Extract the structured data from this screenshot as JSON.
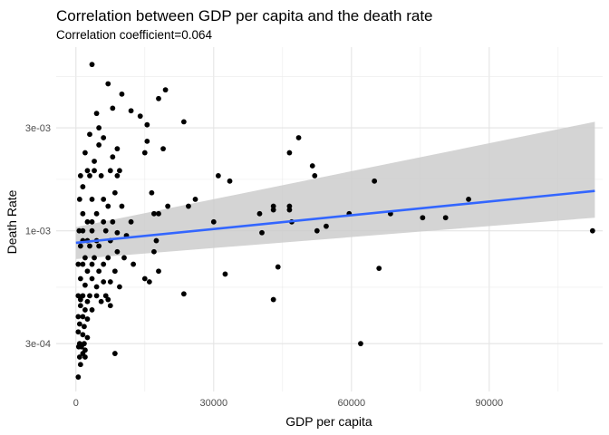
{
  "chart_data": {
    "type": "scatter",
    "title": "Correlation between GDP per capita and the death rate",
    "subtitle": "Correlation coefficient=0.064",
    "xlabel": "GDP per capita",
    "ylabel": "Death Rate",
    "y_scale": "log10",
    "x_ticks": [
      0,
      30000,
      60000,
      90000
    ],
    "x_tick_labels": [
      "0",
      "30000",
      "60000",
      "90000"
    ],
    "y_ticks": [
      0.0003,
      0.001,
      0.003
    ],
    "y_tick_labels": [
      "3e-04",
      "1e-03",
      "3e-03"
    ],
    "xlim": [
      -4300,
      114700
    ],
    "ylim": [
      0.00018,
      0.0071
    ],
    "grid": true,
    "regression_line": {
      "x_start": 0,
      "y_start": 0.00088,
      "x_end": 113000,
      "y_end": 0.00153,
      "ci_start": [
        0.00074,
        0.00104
      ],
      "ci_end": [
        0.00115,
        0.0032
      ],
      "color": "#3366ff",
      "band_color": "#cccccc"
    },
    "point_color": "#000000",
    "points": [
      {
        "x": 3500,
        "y": 0.0059
      },
      {
        "x": 7000,
        "y": 0.0048
      },
      {
        "x": 10000,
        "y": 0.0043
      },
      {
        "x": 19500,
        "y": 0.0045
      },
      {
        "x": 18000,
        "y": 0.0041
      },
      {
        "x": 8000,
        "y": 0.0037
      },
      {
        "x": 12000,
        "y": 0.0036
      },
      {
        "x": 14000,
        "y": 0.0034
      },
      {
        "x": 4500,
        "y": 0.0035
      },
      {
        "x": 23500,
        "y": 0.0032
      },
      {
        "x": 15500,
        "y": 0.0031
      },
      {
        "x": 5000,
        "y": 0.003
      },
      {
        "x": 3000,
        "y": 0.0028
      },
      {
        "x": 6000,
        "y": 0.0027
      },
      {
        "x": 15500,
        "y": 0.0026
      },
      {
        "x": 5000,
        "y": 0.0025
      },
      {
        "x": 9000,
        "y": 0.0024
      },
      {
        "x": 19000,
        "y": 0.0024
      },
      {
        "x": 2000,
        "y": 0.0023
      },
      {
        "x": 8000,
        "y": 0.0022
      },
      {
        "x": 15000,
        "y": 0.0023
      },
      {
        "x": 4000,
        "y": 0.0021
      },
      {
        "x": 2500,
        "y": 0.0019
      },
      {
        "x": 4000,
        "y": 0.0019
      },
      {
        "x": 7500,
        "y": 0.0019
      },
      {
        "x": 9500,
        "y": 0.0019
      },
      {
        "x": 1000,
        "y": 0.0018
      },
      {
        "x": 3000,
        "y": 0.0018
      },
      {
        "x": 5500,
        "y": 0.0018
      },
      {
        "x": 9000,
        "y": 0.0018
      },
      {
        "x": 1500,
        "y": 0.0016
      },
      {
        "x": 8500,
        "y": 0.0015
      },
      {
        "x": 3500,
        "y": 0.0014
      },
      {
        "x": 800,
        "y": 0.0014
      },
      {
        "x": 6000,
        "y": 0.0014
      },
      {
        "x": 16500,
        "y": 0.0015
      },
      {
        "x": 7000,
        "y": 0.0013
      },
      {
        "x": 10000,
        "y": 0.0013
      },
      {
        "x": 1500,
        "y": 0.0012
      },
      {
        "x": 4500,
        "y": 0.0012
      },
      {
        "x": 20000,
        "y": 0.0013
      },
      {
        "x": 18000,
        "y": 0.0012
      },
      {
        "x": 17000,
        "y": 0.0012
      },
      {
        "x": 2500,
        "y": 0.0011
      },
      {
        "x": 3500,
        "y": 0.0011
      },
      {
        "x": 6000,
        "y": 0.0011
      },
      {
        "x": 8000,
        "y": 0.0011
      },
      {
        "x": 12000,
        "y": 0.0011
      },
      {
        "x": 700,
        "y": 0.001
      },
      {
        "x": 1500,
        "y": 0.001
      },
      {
        "x": 3500,
        "y": 0.001
      },
      {
        "x": 6500,
        "y": 0.001
      },
      {
        "x": 9000,
        "y": 0.00098
      },
      {
        "x": 11000,
        "y": 0.00095
      },
      {
        "x": 1500,
        "y": 0.0009
      },
      {
        "x": 2500,
        "y": 0.0009
      },
      {
        "x": 4500,
        "y": 0.0009
      },
      {
        "x": 7500,
        "y": 0.0009
      },
      {
        "x": 17500,
        "y": 0.0009
      },
      {
        "x": 1000,
        "y": 0.00085
      },
      {
        "x": 3000,
        "y": 0.00085
      },
      {
        "x": 5000,
        "y": 0.00085
      },
      {
        "x": 9000,
        "y": 0.0008
      },
      {
        "x": 17000,
        "y": 0.0008
      },
      {
        "x": 2000,
        "y": 0.00075
      },
      {
        "x": 4000,
        "y": 0.00075
      },
      {
        "x": 7000,
        "y": 0.00075
      },
      {
        "x": 10500,
        "y": 0.00075
      },
      {
        "x": 500,
        "y": 0.0007
      },
      {
        "x": 1500,
        "y": 0.0007
      },
      {
        "x": 3500,
        "y": 0.0007
      },
      {
        "x": 6000,
        "y": 0.0007
      },
      {
        "x": 12500,
        "y": 0.0007
      },
      {
        "x": 18000,
        "y": 0.00065
      },
      {
        "x": 2500,
        "y": 0.00065
      },
      {
        "x": 5000,
        "y": 0.00065
      },
      {
        "x": 8500,
        "y": 0.00065
      },
      {
        "x": 1000,
        "y": 0.0006
      },
      {
        "x": 3500,
        "y": 0.0006
      },
      {
        "x": 15000,
        "y": 0.0006
      },
      {
        "x": 16000,
        "y": 0.00058
      },
      {
        "x": 6000,
        "y": 0.00058
      },
      {
        "x": 7500,
        "y": 0.00058
      },
      {
        "x": 2000,
        "y": 0.00056
      },
      {
        "x": 4500,
        "y": 0.00055
      },
      {
        "x": 9500,
        "y": 0.00055
      },
      {
        "x": 500,
        "y": 0.0005
      },
      {
        "x": 1500,
        "y": 0.0005
      },
      {
        "x": 3000,
        "y": 0.0005
      },
      {
        "x": 4500,
        "y": 0.0005
      },
      {
        "x": 6500,
        "y": 0.0005
      },
      {
        "x": 7000,
        "y": 0.00048
      },
      {
        "x": 1000,
        "y": 0.00048
      },
      {
        "x": 2500,
        "y": 0.00047
      },
      {
        "x": 5500,
        "y": 0.00047
      },
      {
        "x": 7500,
        "y": 0.00045
      },
      {
        "x": 1000,
        "y": 0.00045
      },
      {
        "x": 2000,
        "y": 0.00043
      },
      {
        "x": 3500,
        "y": 0.00043
      },
      {
        "x": 500,
        "y": 0.0004
      },
      {
        "x": 1500,
        "y": 0.0004
      },
      {
        "x": 2500,
        "y": 0.00039
      },
      {
        "x": 800,
        "y": 0.00037
      },
      {
        "x": 1800,
        "y": 0.00036
      },
      {
        "x": 500,
        "y": 0.00034
      },
      {
        "x": 1500,
        "y": 0.00033
      },
      {
        "x": 2500,
        "y": 0.00032
      },
      {
        "x": 800,
        "y": 0.0003
      },
      {
        "x": 1800,
        "y": 0.0003
      },
      {
        "x": 1200,
        "y": 0.00029
      },
      {
        "x": 600,
        "y": 0.00029
      },
      {
        "x": 2000,
        "y": 0.00028
      },
      {
        "x": 1500,
        "y": 0.00027
      },
      {
        "x": 800,
        "y": 0.00026
      },
      {
        "x": 2000,
        "y": 0.00026
      },
      {
        "x": 1000,
        "y": 0.00024
      },
      {
        "x": 500,
        "y": 0.00021
      },
      {
        "x": 8500,
        "y": 0.00027
      },
      {
        "x": 23500,
        "y": 0.00051
      },
      {
        "x": 31000,
        "y": 0.0018
      },
      {
        "x": 33500,
        "y": 0.0017
      },
      {
        "x": 26000,
        "y": 0.0014
      },
      {
        "x": 24500,
        "y": 0.0013
      },
      {
        "x": 30000,
        "y": 0.0011
      },
      {
        "x": 40000,
        "y": 0.0012
      },
      {
        "x": 40500,
        "y": 0.00098
      },
      {
        "x": 43000,
        "y": 0.00125
      },
      {
        "x": 43000,
        "y": 0.0013
      },
      {
        "x": 46500,
        "y": 0.00125
      },
      {
        "x": 46500,
        "y": 0.0013
      },
      {
        "x": 47000,
        "y": 0.0011
      },
      {
        "x": 48500,
        "y": 0.0027
      },
      {
        "x": 46500,
        "y": 0.0023
      },
      {
        "x": 51500,
        "y": 0.002
      },
      {
        "x": 52000,
        "y": 0.0018
      },
      {
        "x": 52500,
        "y": 0.001
      },
      {
        "x": 54500,
        "y": 0.00105
      },
      {
        "x": 59500,
        "y": 0.0012
      },
      {
        "x": 65000,
        "y": 0.0017
      },
      {
        "x": 68500,
        "y": 0.0012
      },
      {
        "x": 75500,
        "y": 0.00115
      },
      {
        "x": 80500,
        "y": 0.00115
      },
      {
        "x": 85500,
        "y": 0.0014
      },
      {
        "x": 112500,
        "y": 0.001
      },
      {
        "x": 44000,
        "y": 0.00068
      },
      {
        "x": 32500,
        "y": 0.00063
      },
      {
        "x": 43000,
        "y": 0.00048
      },
      {
        "x": 66000,
        "y": 0.00067
      },
      {
        "x": 62000,
        "y": 0.0003
      }
    ]
  }
}
